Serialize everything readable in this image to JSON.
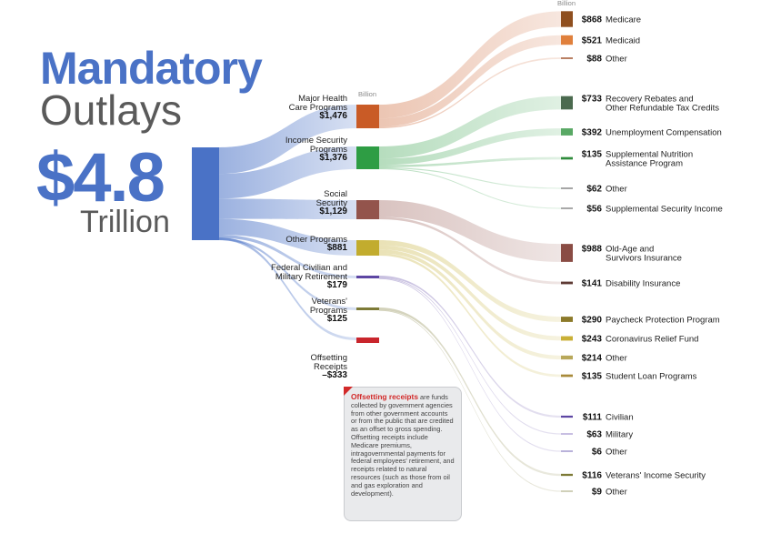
{
  "title": "Mandatory",
  "subtitle": "Outlays",
  "total_amount": "$4.8",
  "total_unit": "Trillion",
  "mid_unit_label": "Billion",
  "right_unit_label": "Billion",
  "note": {
    "heading": "Offsetting receipts",
    "text": " are funds collected by government agencies from other government accounts or from the public that are credited as an offset to gross spending. Offsetting receipts include Medicare premiums, intragovernmental payments for federal employees' retirement, and receipts related to natural resources (such as those from oil and gas exploration and development)."
  },
  "colors": {
    "total": "#4a72c6",
    "title": "#4a72c6",
    "subtitle": "#5a5a5a",
    "note_accent": "#d22a2a"
  },
  "chart_data": {
    "type": "sankey",
    "units": "Billion",
    "total": {
      "label": "Trillion",
      "value": 4.8
    },
    "categories": [
      {
        "id": "health",
        "name": "Major Health Care Programs",
        "lines": [
          "Major Health",
          "Care Programs"
        ],
        "value": 1476,
        "display": "$1,476",
        "color": "#c95b26"
      },
      {
        "id": "income",
        "name": "Income Security Programs",
        "lines": [
          "Income Security",
          "Programs"
        ],
        "value": 1376,
        "display": "$1,376",
        "color": "#2e9d44"
      },
      {
        "id": "social",
        "name": "Social Security",
        "lines": [
          "Social",
          "Security"
        ],
        "value": 1129,
        "display": "$1,129",
        "color": "#93544c"
      },
      {
        "id": "other",
        "name": "Other Programs",
        "lines": [
          "Other Programs"
        ],
        "value": 881,
        "display": "$881",
        "color": "#c2ac2e"
      },
      {
        "id": "federal",
        "name": "Federal Civilian and Military Retirement",
        "lines": [
          "Federal Civilian and",
          "Military Retirement"
        ],
        "value": 179,
        "display": "$179",
        "color": "#5d46a3"
      },
      {
        "id": "veterans",
        "name": "Veterans' Programs",
        "lines": [
          "Veterans'",
          "Programs"
        ],
        "value": 125,
        "display": "$125",
        "color": "#7d7a36"
      },
      {
        "id": "offsetting",
        "name": "Offsetting Receipts",
        "lines": [
          "Offsetting",
          "Receipts"
        ],
        "value": -333,
        "display": "–$333",
        "color": "#c9252c"
      }
    ],
    "items": [
      {
        "parent": "health",
        "label": [
          "Medicare"
        ],
        "value": 868,
        "display": "$868",
        "color": "#8f4f1f"
      },
      {
        "parent": "health",
        "label": [
          "Medicaid"
        ],
        "value": 521,
        "display": "$521",
        "color": "#e0803c"
      },
      {
        "parent": "health",
        "label": [
          "Other"
        ],
        "value": 88,
        "display": "$88",
        "color": "#b07050"
      },
      {
        "parent": "income",
        "label": [
          "Recovery Rebates and",
          "Other Refundable Tax Credits"
        ],
        "value": 733,
        "display": "$733",
        "color": "#4b6a4f"
      },
      {
        "parent": "income",
        "label": [
          "Unemployment Compensation"
        ],
        "value": 392,
        "display": "$392",
        "color": "#58a864"
      },
      {
        "parent": "income",
        "label": [
          "Supplemental Nutrition",
          "Assistance Program"
        ],
        "value": 135,
        "display": "$135",
        "color": "#2f8c3c"
      },
      {
        "parent": "income",
        "label": [
          "Other"
        ],
        "value": 62,
        "display": "$62",
        "color": "#707070"
      },
      {
        "parent": "income",
        "label": [
          "Supplemental Security Income"
        ],
        "value": 56,
        "display": "$56",
        "color": "#707070"
      },
      {
        "parent": "social",
        "label": [
          "Old-Age and",
          "Survivors Insurance"
        ],
        "value": 988,
        "display": "$988",
        "color": "#8a4c44"
      },
      {
        "parent": "social",
        "label": [
          "Disability Insurance"
        ],
        "value": 141,
        "display": "$141",
        "color": "#5e3a34"
      },
      {
        "parent": "other",
        "label": [
          "Paycheck Protection Program"
        ],
        "value": 290,
        "display": "$290",
        "color": "#8c7a2a"
      },
      {
        "parent": "other",
        "label": [
          "Coronavirus Relief Fund"
        ],
        "value": 243,
        "display": "$243",
        "color": "#c9b036"
      },
      {
        "parent": "other",
        "label": [
          "Other"
        ],
        "value": 214,
        "display": "$214",
        "color": "#b8a85a"
      },
      {
        "parent": "other",
        "label": [
          "Student Loan Programs"
        ],
        "value": 135,
        "display": "$135",
        "color": "#a88a3a"
      },
      {
        "parent": "federal",
        "label": [
          "Civilian"
        ],
        "value": 111,
        "display": "$111",
        "color": "#5d46a3"
      },
      {
        "parent": "federal",
        "label": [
          "Military"
        ],
        "value": 63,
        "display": "$63",
        "color": "#a89ad0"
      },
      {
        "parent": "federal",
        "label": [
          "Other"
        ],
        "value": 6,
        "display": "$6",
        "color": "#8a7fc0"
      },
      {
        "parent": "veterans",
        "label": [
          "Veterans' Income Security"
        ],
        "value": 116,
        "display": "$116",
        "color": "#7d7a36"
      },
      {
        "parent": "veterans",
        "label": [
          "Other"
        ],
        "value": 9,
        "display": "$9",
        "color": "#b0b08a"
      }
    ]
  }
}
